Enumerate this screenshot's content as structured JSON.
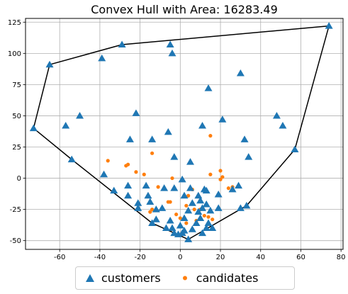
{
  "chart_data": {
    "type": "scatter",
    "title": "Convex Hull with Area: 16283.49",
    "xlabel": "",
    "ylabel": "",
    "xlim": [
      -77,
      81
    ],
    "ylim": [
      -57,
      128
    ],
    "xticks": [
      -60,
      -40,
      -20,
      0,
      20,
      40,
      60,
      80
    ],
    "yticks": [
      -50,
      -25,
      0,
      25,
      50,
      75,
      100,
      125
    ],
    "grid": true,
    "legend_position": "bottom-center",
    "colors": {
      "customers": "#1f77b4",
      "candidates": "#ff7f0e",
      "hull": "#000000"
    },
    "series": [
      {
        "name": "customers",
        "marker": "triangle",
        "points": [
          [
            74,
            122
          ],
          [
            -29,
            107
          ],
          [
            -5,
            107
          ],
          [
            -4,
            100
          ],
          [
            -65,
            91
          ],
          [
            -39,
            96
          ],
          [
            30,
            84
          ],
          [
            14,
            72
          ],
          [
            -57,
            42
          ],
          [
            -50,
            50
          ],
          [
            -22,
            52
          ],
          [
            -73,
            40
          ],
          [
            11,
            42
          ],
          [
            21,
            47
          ],
          [
            48,
            50
          ],
          [
            51,
            42
          ],
          [
            -25,
            31
          ],
          [
            -14,
            31
          ],
          [
            -6,
            37
          ],
          [
            32,
            31
          ],
          [
            -54,
            15
          ],
          [
            -3,
            17
          ],
          [
            5,
            13
          ],
          [
            34,
            17
          ],
          [
            -38,
            3
          ],
          [
            57,
            23
          ],
          [
            -33,
            -10
          ],
          [
            -26,
            -6
          ],
          [
            -17,
            -6
          ],
          [
            -8,
            -8
          ],
          [
            -3,
            -8
          ],
          [
            1,
            -1
          ],
          [
            5,
            -8
          ],
          [
            12,
            -9
          ],
          [
            26,
            -9
          ],
          [
            29,
            -6
          ],
          [
            -26,
            -14
          ],
          [
            -16,
            -14
          ],
          [
            2,
            -14
          ],
          [
            9,
            -14
          ],
          [
            13,
            -10
          ],
          [
            19,
            -13
          ],
          [
            -21,
            -20
          ],
          [
            -21,
            -24
          ],
          [
            -15,
            -19
          ],
          [
            -12,
            -25
          ],
          [
            -9,
            -24
          ],
          [
            6,
            -20
          ],
          [
            10,
            -18
          ],
          [
            13,
            -21
          ],
          [
            19,
            -24
          ],
          [
            -14,
            -36
          ],
          [
            -12,
            -33
          ],
          [
            -5,
            -34
          ],
          [
            2,
            -32
          ],
          [
            4,
            -26
          ],
          [
            9,
            -27
          ],
          [
            11,
            -24
          ],
          [
            30,
            -24
          ],
          [
            33,
            -22
          ],
          [
            -7,
            -40
          ],
          [
            -4,
            -40
          ],
          [
            -1,
            -45
          ],
          [
            2,
            -42
          ],
          [
            6,
            -41
          ],
          [
            8,
            -36
          ],
          [
            10,
            -32
          ],
          [
            13,
            -40
          ],
          [
            14,
            -36
          ],
          [
            4,
            -49
          ],
          [
            -3,
            -44
          ],
          [
            1,
            -44
          ],
          [
            11,
            -44
          ],
          [
            16,
            -40
          ],
          [
            0,
            -38
          ],
          [
            15,
            -26
          ]
        ]
      },
      {
        "name": "candidates",
        "marker": "circle",
        "points": [
          [
            -36,
            14
          ],
          [
            -27,
            10
          ],
          [
            -26,
            11
          ],
          [
            -22,
            5
          ],
          [
            -18,
            3
          ],
          [
            -14,
            20
          ],
          [
            -11,
            -7
          ],
          [
            -4,
            0
          ],
          [
            -6,
            -19
          ],
          [
            -5,
            -19
          ],
          [
            3,
            -22
          ],
          [
            -14,
            -25
          ],
          [
            -15,
            -27
          ],
          [
            4,
            -14
          ],
          [
            6,
            -9
          ],
          [
            10,
            -25
          ],
          [
            15,
            34
          ],
          [
            15,
            3
          ],
          [
            20,
            6
          ],
          [
            20,
            -1
          ],
          [
            21,
            1
          ],
          [
            24,
            -8
          ],
          [
            26,
            -7
          ],
          [
            7,
            -25
          ],
          [
            12,
            -30
          ],
          [
            14,
            -31
          ],
          [
            16,
            -33
          ],
          [
            -2,
            -29
          ],
          [
            0,
            -32
          ],
          [
            3,
            -36
          ],
          [
            8,
            -34
          ]
        ]
      }
    ],
    "hull": [
      [
        74,
        122
      ],
      [
        57,
        23
      ],
      [
        33,
        -22
      ],
      [
        4,
        -49
      ],
      [
        -14,
        -36
      ],
      [
        -54,
        15
      ],
      [
        -73,
        40
      ],
      [
        -65,
        91
      ],
      [
        -29,
        107
      ],
      [
        74,
        122
      ]
    ]
  }
}
